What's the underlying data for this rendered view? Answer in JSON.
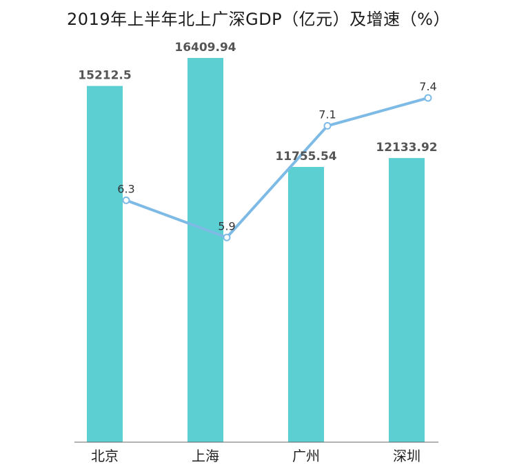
{
  "title": "2019年上半年北上广深GDP（亿元）及增速（%）",
  "chart_data": {
    "type": "bar",
    "title": "2019年上半年北上广深GDP（亿元）及增速（%）",
    "categories": [
      "北京",
      "上海",
      "广州",
      "深圳"
    ],
    "series": [
      {
        "type": "bar",
        "values": [
          15212.5,
          16409.94,
          11755.54,
          12133.92
        ],
        "value_labels": [
          "15212.5",
          "16409.94",
          "11755.54",
          "12133.92"
        ],
        "color": "#5bcfd2"
      },
      {
        "type": "line",
        "axis": "secondary",
        "values": [
          6.3,
          5.9,
          7.1,
          7.4
        ],
        "value_labels": [
          "6.3",
          "5.9",
          "7.1",
          "7.4"
        ],
        "color": "#7dbbe6"
      }
    ],
    "ylim": [
      0,
      18000
    ],
    "y2lim": [
      3.7,
      7.8
    ],
    "grid": false,
    "legend": "none"
  }
}
